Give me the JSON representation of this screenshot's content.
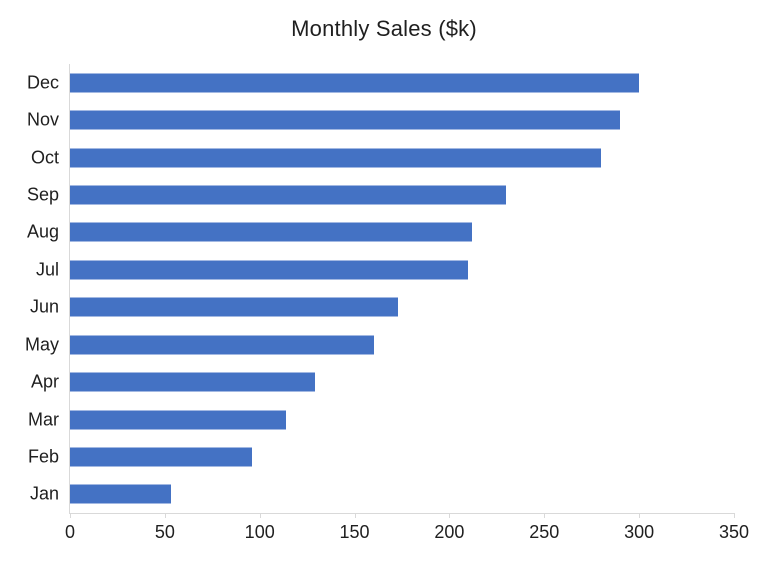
{
  "chart_data": {
    "type": "bar",
    "orientation": "horizontal",
    "title": "Monthly Sales ($k)",
    "categories": [
      "Dec",
      "Nov",
      "Oct",
      "Sep",
      "Aug",
      "Jul",
      "Jun",
      "May",
      "Apr",
      "Mar",
      "Feb",
      "Jan"
    ],
    "values": [
      300,
      290,
      280,
      230,
      212,
      210,
      173,
      160,
      129,
      114,
      96,
      53
    ],
    "xlabel": "",
    "ylabel": "",
    "xlim": [
      0,
      350
    ],
    "x_ticks": [
      0,
      50,
      100,
      150,
      200,
      250,
      300,
      350
    ],
    "grid": false,
    "legend": false,
    "bar_color": "#4472C4",
    "axis_color": "#D9D9D9",
    "text_color": "#1F1F1F"
  }
}
